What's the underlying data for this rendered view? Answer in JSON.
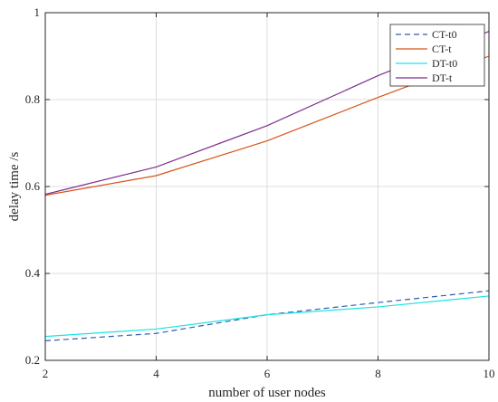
{
  "chart_data": {
    "type": "line",
    "title": "",
    "xlabel": "number of user nodes",
    "ylabel": "delay time /s",
    "xlim": [
      2,
      10
    ],
    "ylim": [
      0.2,
      1.0
    ],
    "xticks": [
      2,
      4,
      6,
      8,
      10
    ],
    "yticks": [
      0.2,
      0.4,
      0.6,
      0.8,
      1.0
    ],
    "xtick_labels": [
      "2",
      "4",
      "6",
      "8",
      "10"
    ],
    "ytick_labels": [
      "0.2",
      "0.4",
      "0.6",
      "0.8",
      "1"
    ],
    "grid": true,
    "legend_position": "top-right",
    "x": [
      2,
      4,
      6,
      8,
      10
    ],
    "series": [
      {
        "name": "CT-t0",
        "values": [
          0.245,
          0.262,
          0.305,
          0.333,
          0.36
        ],
        "color": "#2e5fae",
        "dashed": true
      },
      {
        "name": "CT-t",
        "values": [
          0.58,
          0.625,
          0.705,
          0.805,
          0.9
        ],
        "color": "#d95319",
        "dashed": false
      },
      {
        "name": "DT-t0",
        "values": [
          0.255,
          0.272,
          0.305,
          0.323,
          0.348
        ],
        "color": "#1ee3e3",
        "dashed": false
      },
      {
        "name": "DT-t",
        "values": [
          0.582,
          0.645,
          0.74,
          0.855,
          0.957
        ],
        "color": "#7e2f8e",
        "dashed": false
      }
    ]
  }
}
